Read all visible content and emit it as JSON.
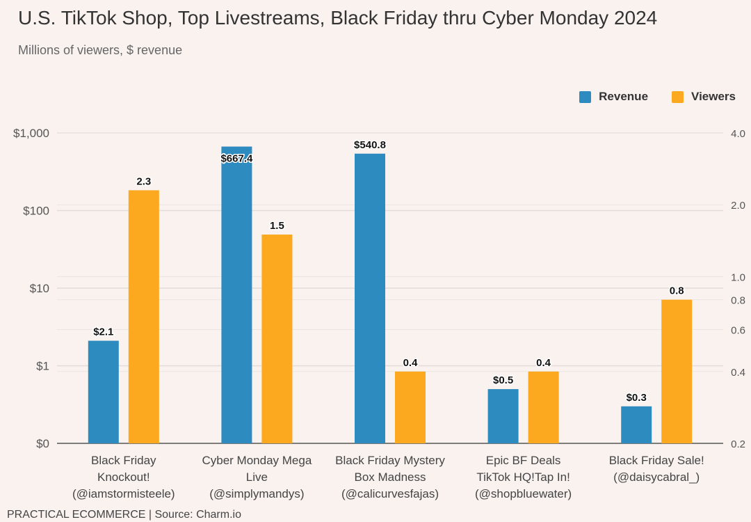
{
  "chart_data": {
    "type": "bar",
    "title": "U.S. TikTok Shop, Top Livestreams, Black Friday thru Cyber Monday 2024",
    "subtitle": "Millions of viewers, $ revenue",
    "categories": [
      "Black Friday Knockout! (@iamstormisteele)",
      "Cyber Monday Mega Live (@simplymandys)",
      "Black Friday Mystery Box Madness (@calicurvesfajas)",
      "Epic BF Deals TikTok HQ!Tap In! (@shopbluewater)",
      "Black Friday Sale! (@daisycabral_)"
    ],
    "category_lines": [
      [
        "Black Friday",
        "Knockout!",
        "(@iamstormisteele)"
      ],
      [
        "Cyber Monday Mega",
        "Live",
        "(@simplymandys)"
      ],
      [
        "Black Friday Mystery",
        "Box Madness",
        "(@calicurvesfajas)"
      ],
      [
        "Epic BF Deals",
        "TikTok HQ!Tap In!",
        "(@shopbluewater)"
      ],
      [
        "Black Friday Sale!",
        "(@daisycabral_)"
      ]
    ],
    "series": [
      {
        "name": "Revenue",
        "axis": "left",
        "color": "#2e8bc0",
        "values": [
          2.1,
          667.4,
          540.8,
          0.5,
          0.3
        ],
        "labels": [
          "$2.1",
          "$667.4",
          "$540.8",
          "$0.5",
          "$0.3"
        ]
      },
      {
        "name": "Viewers",
        "axis": "right",
        "color": "#fca920",
        "values": [
          2.3,
          1.5,
          0.4,
          0.4,
          0.8
        ],
        "labels": [
          "2.3",
          "1.5",
          "0.4",
          "0.4",
          "0.8"
        ]
      }
    ],
    "y_left": {
      "scale": "log",
      "ticks": [
        0.1,
        1,
        10,
        100,
        1000
      ],
      "tick_labels": [
        "$0",
        "$1",
        "$10",
        "$100",
        "$1,000"
      ],
      "range": [
        0.1,
        1000
      ]
    },
    "y_right": {
      "scale": "log",
      "ticks": [
        0.2,
        0.4,
        0.6,
        0.8,
        1.0,
        2.0,
        4.0
      ],
      "tick_labels": [
        "0.2",
        "0.4",
        "0.6",
        "0.8",
        "1.0",
        "2.0",
        "4.0"
      ],
      "range": [
        0.2,
        4.0
      ]
    },
    "legend_position": "top-right",
    "grid": true
  },
  "footer": "PRACTICAL ECOMMERCE | Source: Charm.io"
}
